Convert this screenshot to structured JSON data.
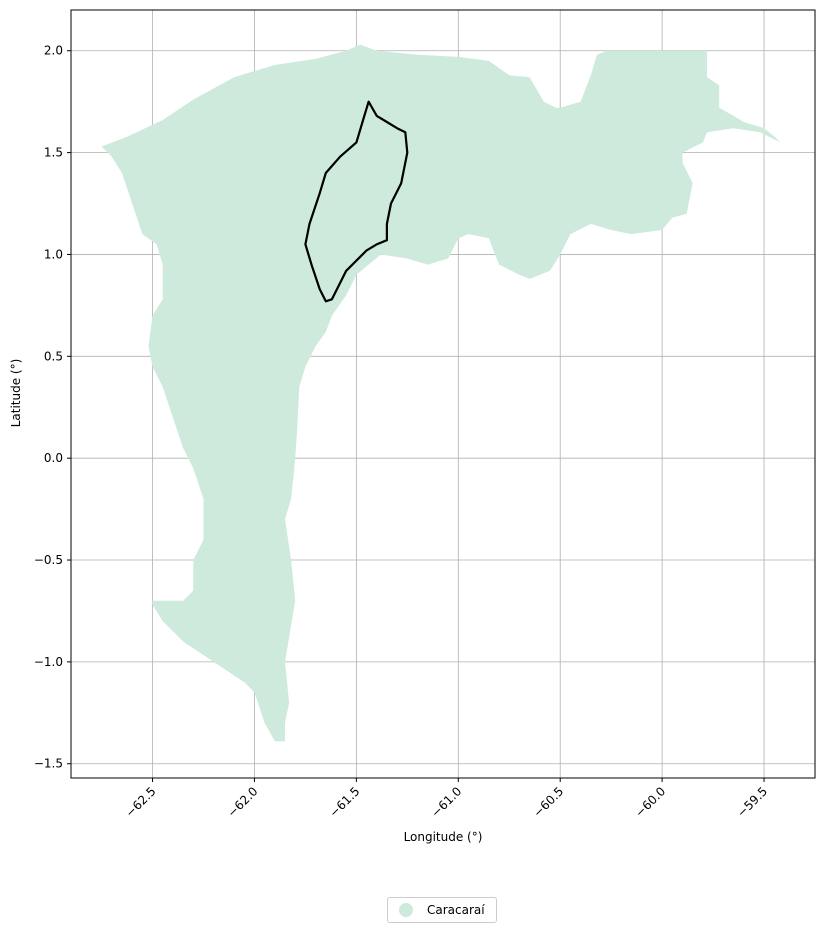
{
  "chart_data": {
    "type": "map",
    "xlabel": "Longitude (°)",
    "ylabel": "Latitude (°)",
    "xlim": [
      -62.9,
      -59.25
    ],
    "ylim": [
      -1.57,
      2.2
    ],
    "xticks": [
      -62.5,
      -62.0,
      -61.5,
      -61.0,
      -60.5,
      -60.0,
      -59.5
    ],
    "xtick_labels": [
      "−62.5",
      "−62.0",
      "−61.5",
      "−61.0",
      "−60.5",
      "−60.0",
      "−59.5"
    ],
    "yticks": [
      2.0,
      1.5,
      1.0,
      0.5,
      0.0,
      -0.5,
      -1.0,
      -1.5
    ],
    "ytick_labels": [
      "2.0",
      "1.5",
      "1.0",
      "0.5",
      "0.0",
      "−0.5",
      "−1.0",
      "−1.5"
    ],
    "grid": true,
    "legend_position": "bottom-center",
    "series": [
      {
        "name": "Caracaraí",
        "color": "#cdeadc",
        "polygon": [
          [
            -62.75,
            1.53
          ],
          [
            -62.62,
            1.58
          ],
          [
            -62.45,
            1.66
          ],
          [
            -62.3,
            1.76
          ],
          [
            -62.1,
            1.87
          ],
          [
            -61.9,
            1.93
          ],
          [
            -61.7,
            1.96
          ],
          [
            -61.55,
            2.0
          ],
          [
            -61.48,
            2.03
          ],
          [
            -61.4,
            2.0
          ],
          [
            -61.2,
            1.98
          ],
          [
            -61.0,
            1.97
          ],
          [
            -60.85,
            1.95
          ],
          [
            -60.75,
            1.88
          ],
          [
            -60.65,
            1.87
          ],
          [
            -60.58,
            1.75
          ],
          [
            -60.52,
            1.72
          ],
          [
            -60.5,
            1.72
          ],
          [
            -60.4,
            1.75
          ],
          [
            -60.35,
            1.88
          ],
          [
            -60.32,
            1.98
          ],
          [
            -60.27,
            2.0
          ],
          [
            -59.78,
            2.0
          ],
          [
            -59.78,
            1.87
          ],
          [
            -59.72,
            1.83
          ],
          [
            -59.72,
            1.72
          ],
          [
            -59.65,
            1.68
          ],
          [
            -59.6,
            1.65
          ],
          [
            -59.5,
            1.62
          ],
          [
            -59.45,
            1.58
          ],
          [
            -59.42,
            1.55
          ],
          [
            -59.52,
            1.6
          ],
          [
            -59.65,
            1.62
          ],
          [
            -59.78,
            1.6
          ],
          [
            -59.8,
            1.55
          ],
          [
            -59.9,
            1.5
          ],
          [
            -59.9,
            1.45
          ],
          [
            -59.85,
            1.35
          ],
          [
            -59.88,
            1.2
          ],
          [
            -59.95,
            1.18
          ],
          [
            -60.0,
            1.12
          ],
          [
            -60.15,
            1.1
          ],
          [
            -60.25,
            1.12
          ],
          [
            -60.35,
            1.15
          ],
          [
            -60.45,
            1.1
          ],
          [
            -60.5,
            1.0
          ],
          [
            -60.55,
            0.92
          ],
          [
            -60.65,
            0.88
          ],
          [
            -60.7,
            0.9
          ],
          [
            -60.8,
            0.95
          ],
          [
            -60.82,
            1.0
          ],
          [
            -60.85,
            1.08
          ],
          [
            -60.95,
            1.1
          ],
          [
            -61.0,
            1.08
          ],
          [
            -61.05,
            0.98
          ],
          [
            -61.15,
            0.95
          ],
          [
            -61.25,
            0.98
          ],
          [
            -61.38,
            1.0
          ],
          [
            -61.5,
            0.9
          ],
          [
            -61.55,
            0.8
          ],
          [
            -61.62,
            0.7
          ],
          [
            -61.65,
            0.62
          ],
          [
            -61.7,
            0.55
          ],
          [
            -61.75,
            0.45
          ],
          [
            -61.78,
            0.35
          ],
          [
            -61.79,
            0.15
          ],
          [
            -61.8,
            0.0
          ],
          [
            -61.81,
            -0.1
          ],
          [
            -61.82,
            -0.2
          ],
          [
            -61.85,
            -0.3
          ],
          [
            -61.82,
            -0.5
          ],
          [
            -61.8,
            -0.7
          ],
          [
            -61.82,
            -0.82
          ],
          [
            -61.85,
            -1.0
          ],
          [
            -61.83,
            -1.2
          ],
          [
            -61.85,
            -1.3
          ],
          [
            -61.85,
            -1.39
          ],
          [
            -61.9,
            -1.39
          ],
          [
            -61.95,
            -1.3
          ],
          [
            -62.0,
            -1.15
          ],
          [
            -62.05,
            -1.1
          ],
          [
            -62.2,
            -1.0
          ],
          [
            -62.35,
            -0.9
          ],
          [
            -62.45,
            -0.8
          ],
          [
            -62.5,
            -0.72
          ],
          [
            -62.5,
            -0.7
          ],
          [
            -62.35,
            -0.7
          ],
          [
            -62.3,
            -0.65
          ],
          [
            -62.3,
            -0.5
          ],
          [
            -62.25,
            -0.4
          ],
          [
            -62.25,
            -0.2
          ],
          [
            -62.3,
            -0.05
          ],
          [
            -62.35,
            0.05
          ],
          [
            -62.4,
            0.2
          ],
          [
            -62.45,
            0.35
          ],
          [
            -62.5,
            0.45
          ],
          [
            -62.52,
            0.55
          ],
          [
            -62.5,
            0.7
          ],
          [
            -62.45,
            0.78
          ],
          [
            -62.45,
            0.95
          ],
          [
            -62.48,
            1.05
          ],
          [
            -62.55,
            1.1
          ],
          [
            -62.6,
            1.25
          ],
          [
            -62.65,
            1.4
          ],
          [
            -62.7,
            1.48
          ],
          [
            -62.75,
            1.53
          ]
        ]
      },
      {
        "name": "",
        "color": "#000000",
        "outline": [
          [
            -61.44,
            1.75
          ],
          [
            -61.4,
            1.68
          ],
          [
            -61.35,
            1.65
          ],
          [
            -61.3,
            1.62
          ],
          [
            -61.26,
            1.6
          ],
          [
            -61.25,
            1.5
          ],
          [
            -61.28,
            1.35
          ],
          [
            -61.33,
            1.25
          ],
          [
            -61.35,
            1.15
          ],
          [
            -61.35,
            1.07
          ],
          [
            -61.4,
            1.05
          ],
          [
            -61.45,
            1.02
          ],
          [
            -61.55,
            0.92
          ],
          [
            -61.6,
            0.82
          ],
          [
            -61.62,
            0.78
          ],
          [
            -61.65,
            0.77
          ],
          [
            -61.68,
            0.83
          ],
          [
            -61.72,
            0.95
          ],
          [
            -61.75,
            1.05
          ],
          [
            -61.73,
            1.15
          ],
          [
            -61.68,
            1.3
          ],
          [
            -61.65,
            1.4
          ],
          [
            -61.58,
            1.48
          ],
          [
            -61.5,
            1.55
          ],
          [
            -61.47,
            1.65
          ],
          [
            -61.44,
            1.75
          ]
        ]
      }
    ]
  },
  "legend": {
    "label": "Caracaraí",
    "color": "#cdeadc"
  }
}
